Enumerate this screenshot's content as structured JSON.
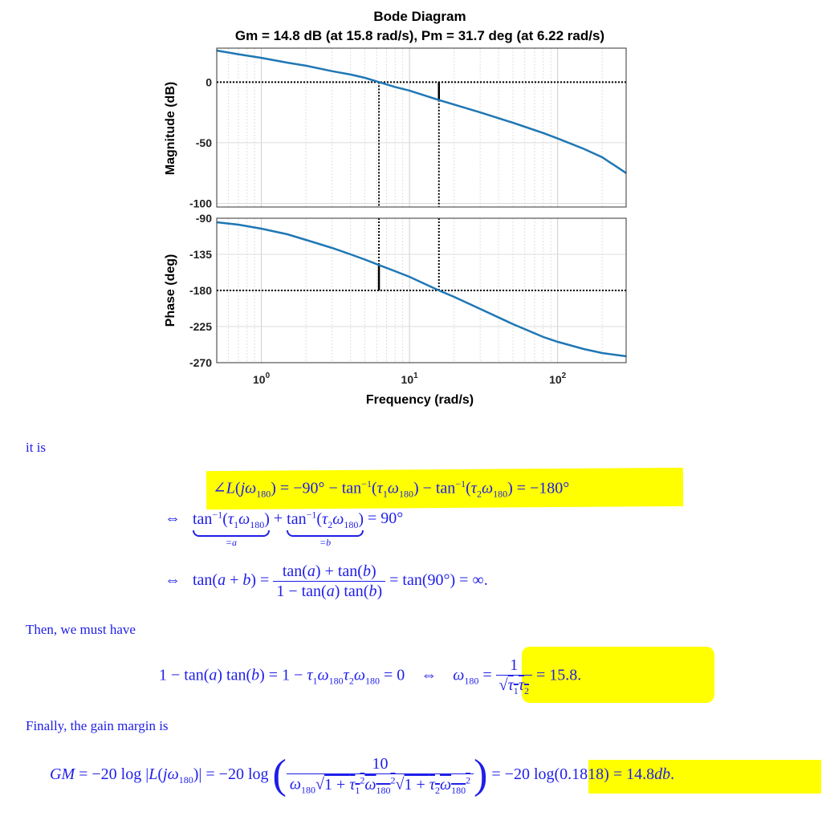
{
  "chart_data": {
    "type": "line",
    "title": "Bode Diagram",
    "subtitle": "Gm = 14.8 dB (at 15.8 rad/s),  Pm = 31.7 deg (at 6.22 rad/s)",
    "xlabel": "Frequency  (rad/s)",
    "xscale": "log",
    "xlim": [
      0.5,
      290
    ],
    "x_ticks": [
      {
        "base": "10",
        "exp": "0",
        "value": 1
      },
      {
        "base": "10",
        "exp": "1",
        "value": 10
      },
      {
        "base": "10",
        "exp": "2",
        "value": 100
      }
    ],
    "grid": true,
    "panels": [
      {
        "ylabel": "Magnitude (dB)",
        "ylim": [
          -103,
          28
        ],
        "yticks": [
          "0",
          "-50",
          "-100"
        ],
        "ytick_values": [
          0,
          -50,
          -100
        ],
        "reference_line": 0,
        "marker_lines": [
          6.22,
          15.8
        ],
        "color": "#1f77b4",
        "series": [
          {
            "x": [
              0.5,
              0.7,
              1,
              1.5,
              2,
              3,
              4,
              5,
              6.22,
              8,
              10,
              15.8,
              20,
              30,
              50,
              80,
              100,
              150,
              200,
              290
            ],
            "y": [
              26,
              23,
              20,
              16,
              13.5,
              9,
              6.2,
              3.5,
              0,
              -4,
              -7,
              -14.8,
              -18.5,
              -25,
              -33.5,
              -42,
              -46.5,
              -55,
              -62,
              -75
            ]
          }
        ]
      },
      {
        "ylabel": "Phase (deg)",
        "ylim": [
          -270,
          -90
        ],
        "yticks": [
          "-90",
          "-135",
          "-180",
          "-225",
          "-270"
        ],
        "ytick_values": [
          -90,
          -135,
          -180,
          -225,
          -270
        ],
        "reference_line": -180,
        "marker_lines": [
          6.22,
          15.8
        ],
        "color": "#1f77b4",
        "series": [
          {
            "x": [
              0.5,
              0.7,
              1,
              1.5,
              2,
              3,
              4,
              5,
              6.22,
              8,
              10,
              15.8,
              20,
              30,
              50,
              80,
              100,
              150,
              200,
              290
            ],
            "y": [
              -95,
              -98,
              -103,
              -110,
              -117,
              -127,
              -135,
              -141.5,
              -148.3,
              -156,
              -163,
              -180,
              -188,
              -203,
              -222,
              -238,
              -244,
              -253,
              -258,
              -262
            ]
          }
        ]
      }
    ]
  },
  "text": {
    "it_is": "it is",
    "then": "Then, we must have",
    "finally": "Finally, the gain margin is"
  },
  "colors": {
    "math_text": "#1f1ee8",
    "highlight": "#ffff00",
    "curve": "#1f77b4"
  }
}
